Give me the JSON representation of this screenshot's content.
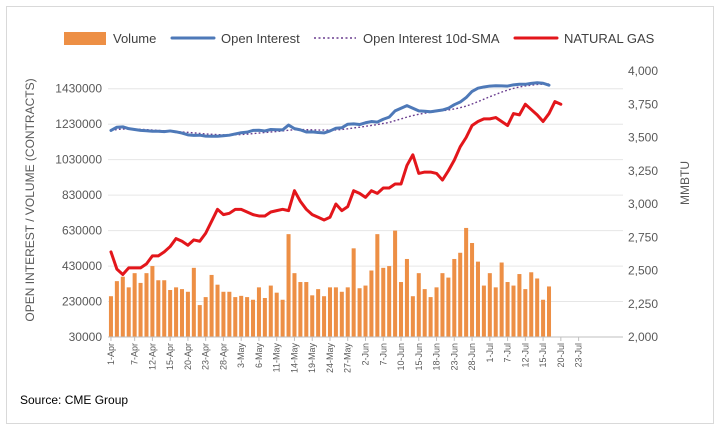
{
  "chart_data": {
    "type": "bar",
    "legend": [
      {
        "label": "Volume",
        "color": "#ED8F45",
        "kind": "bar"
      },
      {
        "label": "Open Interest",
        "color": "#4E79B8",
        "kind": "line"
      },
      {
        "label": "Open Interest 10d-SMA",
        "color": "#6A3D8F",
        "kind": "dotted"
      },
      {
        "label": "NATURAL GAS",
        "color": "#E3161B",
        "kind": "line"
      }
    ],
    "legend_position": "top",
    "ylabel_left": "OPEN INTEREST / VOLUME (CONTRACTS)",
    "ylabel_right": "MMBTU",
    "ylim_left": [
      30000,
      1530000
    ],
    "ylim_right": [
      2000,
      4000
    ],
    "yticks_left": [
      "30000",
      "230000",
      "430000",
      "630000",
      "830000",
      "1030000",
      "1230000",
      "1430000"
    ],
    "yticks_left_values": [
      30000,
      230000,
      430000,
      630000,
      830000,
      1030000,
      1230000,
      1430000
    ],
    "yticks_right": [
      "2,000",
      "2,250",
      "2,500",
      "2,750",
      "3,000",
      "3,250",
      "3,500",
      "3,750",
      "4,000"
    ],
    "yticks_right_values": [
      2000,
      2250,
      2500,
      2750,
      3000,
      3250,
      3500,
      3750,
      4000
    ],
    "x_slots": 87,
    "xticks": [
      {
        "label": "1-Apr",
        "i": 0
      },
      {
        "label": "7-Apr",
        "i": 4
      },
      {
        "label": "12-Apr",
        "i": 7
      },
      {
        "label": "15-Apr",
        "i": 10
      },
      {
        "label": "20-Apr",
        "i": 13
      },
      {
        "label": "23-Apr",
        "i": 16
      },
      {
        "label": "28-Apr",
        "i": 19
      },
      {
        "label": "3-May",
        "i": 22
      },
      {
        "label": "6-May",
        "i": 25
      },
      {
        "label": "11-May",
        "i": 28
      },
      {
        "label": "14-May",
        "i": 31
      },
      {
        "label": "19-May",
        "i": 34
      },
      {
        "label": "24-May",
        "i": 37
      },
      {
        "label": "27-May",
        "i": 40
      },
      {
        "label": "2-Jun",
        "i": 43
      },
      {
        "label": "7-Jun",
        "i": 46
      },
      {
        "label": "10-Jun",
        "i": 49
      },
      {
        "label": "15-Jun",
        "i": 52
      },
      {
        "label": "18-Jun",
        "i": 55
      },
      {
        "label": "23-Jun",
        "i": 58
      },
      {
        "label": "28-Jun",
        "i": 61
      },
      {
        "label": "1-Jul",
        "i": 64
      },
      {
        "label": "7-Jul",
        "i": 67
      },
      {
        "label": "12-Jul",
        "i": 70
      },
      {
        "label": "15-Jul",
        "i": 73
      },
      {
        "label": "20-Jul",
        "i": 76
      },
      {
        "label": "23-Jul",
        "i": 79
      }
    ],
    "series": [
      {
        "name": "Volume",
        "axis": "left",
        "values": [
          260000,
          345000,
          370000,
          310000,
          390000,
          335000,
          390000,
          430000,
          350000,
          350000,
          295000,
          310000,
          300000,
          285000,
          420000,
          210000,
          255000,
          380000,
          325000,
          285000,
          285000,
          255000,
          262000,
          255000,
          240000,
          310000,
          250000,
          320000,
          280000,
          240000,
          610000,
          390000,
          340000,
          340000,
          265000,
          300000,
          260000,
          310000,
          310000,
          285000,
          310000,
          530000,
          305000,
          320000,
          405000,
          610000,
          420000,
          430000,
          630000,
          340000,
          470000,
          260000,
          390000,
          300000,
          255000,
          310000,
          390000,
          365000,
          470000,
          505000,
          645000,
          560000,
          455000,
          320000,
          390000,
          310000,
          450000,
          340000,
          320000,
          385000,
          300000,
          395000,
          360000,
          240000,
          315000
        ]
      },
      {
        "name": "Open Interest",
        "axis": "left",
        "values": [
          1195000,
          1213000,
          1215000,
          1205000,
          1200000,
          1195000,
          1193000,
          1190000,
          1190000,
          1188000,
          1192000,
          1187000,
          1180000,
          1170000,
          1167000,
          1168000,
          1163000,
          1162000,
          1162000,
          1165000,
          1168000,
          1175000,
          1182000,
          1185000,
          1195000,
          1196000,
          1192000,
          1200000,
          1199000,
          1198000,
          1225000,
          1205000,
          1198000,
          1186000,
          1187000,
          1183000,
          1181000,
          1192000,
          1207000,
          1210000,
          1230000,
          1232000,
          1228000,
          1238000,
          1245000,
          1242000,
          1258000,
          1270000,
          1305000,
          1320000,
          1335000,
          1320000,
          1305000,
          1303000,
          1300000,
          1305000,
          1310000,
          1320000,
          1340000,
          1355000,
          1380000,
          1415000,
          1433000,
          1440000,
          1445000,
          1447000,
          1446000,
          1445000,
          1452000,
          1455000,
          1455000,
          1460000,
          1464000,
          1461000,
          1450000
        ]
      },
      {
        "name": "Open Interest 10d-SMA",
        "axis": "left",
        "values": [
          1195000,
          1200000,
          1203000,
          1203000,
          1202000,
          1201000,
          1199000,
          1197000,
          1195000,
          1193000,
          1191000,
          1189000,
          1186000,
          1184000,
          1181000,
          1178000,
          1175000,
          1173000,
          1171000,
          1170000,
          1169000,
          1170000,
          1172000,
          1174000,
          1177000,
          1180000,
          1183000,
          1186000,
          1189000,
          1192000,
          1196000,
          1199000,
          1200000,
          1199000,
          1198000,
          1197000,
          1197000,
          1197000,
          1198000,
          1200000,
          1204000,
          1209000,
          1213000,
          1218000,
          1223000,
          1228000,
          1234000,
          1240000,
          1250000,
          1260000,
          1270000,
          1279000,
          1286000,
          1292000,
          1297000,
          1302000,
          1306000,
          1310000,
          1316000,
          1323000,
          1332000,
          1344000,
          1357000,
          1371000,
          1385000,
          1398000,
          1411000,
          1422000,
          1432000,
          1440000,
          1446000,
          1450000,
          1454000,
          1456000,
          1457000
        ]
      },
      {
        "name": "NATURAL GAS",
        "axis": "right",
        "values": [
          2640,
          2510,
          2470,
          2520,
          2520,
          2520,
          2550,
          2610,
          2610,
          2640,
          2680,
          2740,
          2720,
          2690,
          2730,
          2720,
          2780,
          2870,
          2960,
          2920,
          2930,
          2960,
          2960,
          2940,
          2920,
          2910,
          2910,
          2940,
          2950,
          2960,
          2950,
          3100,
          3020,
          2960,
          2920,
          2900,
          2880,
          2900,
          3000,
          2950,
          2980,
          3100,
          3080,
          3050,
          3100,
          3080,
          3120,
          3120,
          3150,
          3150,
          3290,
          3370,
          3230,
          3240,
          3240,
          3230,
          3180,
          3250,
          3330,
          3430,
          3500,
          3590,
          3620,
          3640,
          3640,
          3650,
          3620,
          3590,
          3680,
          3670,
          3750,
          3710,
          3670,
          3620,
          3680,
          3770,
          3750
        ]
      }
    ],
    "source": "Source: CME Group"
  }
}
